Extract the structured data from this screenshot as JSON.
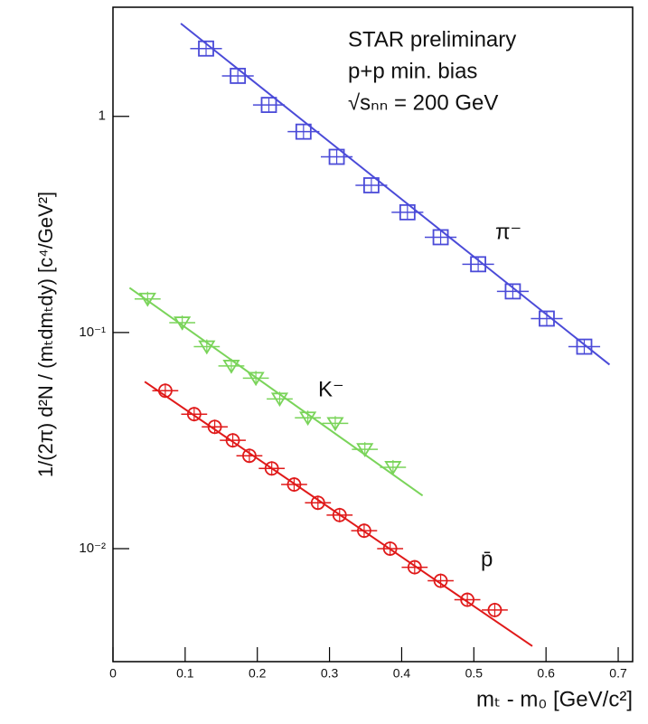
{
  "chart_data": {
    "type": "scatter",
    "xlabel": "mₜ - m₀  [GeV/c²]",
    "ylabel": "1/(2π)  d²N / (mₜdmₜdy)  [c⁴/GeV²]",
    "annotations": [
      "STAR preliminary",
      "p+p min. bias",
      "√sₙₙ = 200 GeV"
    ],
    "xlim": [
      0,
      0.72
    ],
    "xticks": [
      0,
      0.1,
      0.2,
      0.3,
      0.4,
      0.5,
      0.6,
      0.7
    ],
    "ylim": [
      0.003,
      3.2
    ],
    "ylog": true,
    "yticks": [
      {
        "value": 0.01,
        "label": "10⁻²"
      },
      {
        "value": 0.1,
        "label": "10⁻¹"
      },
      1
    ],
    "series": [
      {
        "name": "π⁻",
        "color": "#4b4bd8",
        "marker": "square",
        "xerr": 0.022,
        "x": [
          0.129,
          0.173,
          0.216,
          0.264,
          0.31,
          0.358,
          0.408,
          0.454,
          0.506,
          0.554,
          0.601,
          0.653
        ],
        "values": [
          2.06,
          1.54,
          1.13,
          0.85,
          0.65,
          0.48,
          0.36,
          0.276,
          0.207,
          0.155,
          0.116,
          0.086
        ],
        "fit": {
          "x": [
            0.094,
            0.688
          ],
          "y": [
            2.69,
            0.071
          ]
        }
      },
      {
        "name": "K⁻",
        "color": "#7ad45a",
        "marker": "triangle",
        "xerr": 0.018,
        "x": [
          0.048,
          0.096,
          0.13,
          0.164,
          0.198,
          0.231,
          0.27,
          0.308,
          0.349,
          0.388
        ],
        "values": [
          0.143,
          0.111,
          0.086,
          0.07,
          0.0615,
          0.0493,
          0.0403,
          0.038,
          0.0288,
          0.0238
        ],
        "fit": {
          "x": [
            0.023,
            0.429
          ],
          "y": [
            0.161,
            0.0176
          ]
        }
      },
      {
        "name": "p̄",
        "color": "#e01a1a",
        "marker": "circle",
        "xerr": 0.018,
        "x": [
          0.0725,
          0.1125,
          0.141,
          0.166,
          0.189,
          0.22,
          0.251,
          0.284,
          0.314,
          0.348,
          0.384,
          0.418,
          0.454,
          0.491,
          0.529
        ],
        "values": [
          0.0538,
          0.0419,
          0.0366,
          0.0317,
          0.0269,
          0.0235,
          0.0198,
          0.0163,
          0.0143,
          0.0121,
          0.01,
          0.0082,
          0.0071,
          0.0058,
          0.0052
        ],
        "fit": {
          "x": [
            0.044,
            0.581
          ],
          "y": [
            0.0592,
            0.00354
          ]
        }
      }
    ]
  }
}
